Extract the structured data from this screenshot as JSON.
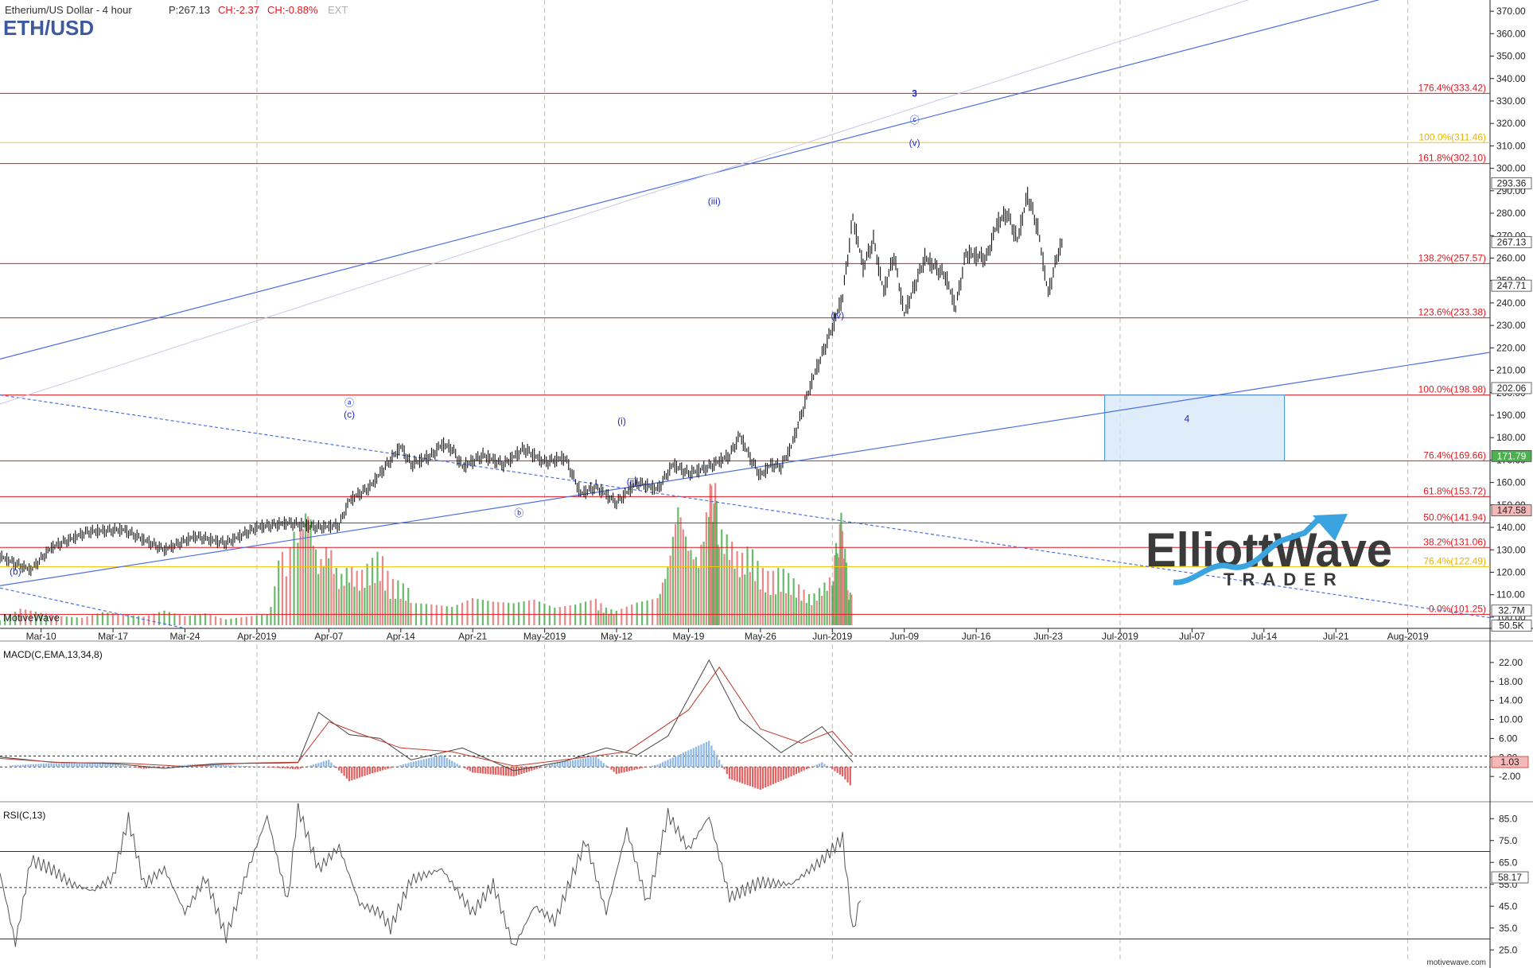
{
  "header": {
    "instrument": "Etherium/US Dollar - 4 hour",
    "price": "P:267.13",
    "change": "CH:-2.37",
    "change_pct": "CH:-0.88%",
    "ext": "EXT",
    "symbol": "ETH/USD"
  },
  "watermarks": {
    "motivewave": "MotiveWave",
    "site": "motivewave.com",
    "logo_line1": "ElliottWave",
    "logo_line2": "TRADER"
  },
  "colors": {
    "fib_red": "#e0191e",
    "fib_yellow": "#f5c518",
    "trend_blue": "#4a6fe0",
    "wave_label": "#1b2bd6",
    "box_fill": "#d4e6f7",
    "box_stroke": "#3b8fd6",
    "volume_up": "#4caf50",
    "volume_down": "#e57373"
  },
  "chart_data": [
    {
      "type": "line",
      "pane": "price",
      "y_axis": {
        "min": 95,
        "max": 375,
        "ticks": [
          100,
          110,
          120,
          130,
          140,
          150,
          160,
          170,
          180,
          190,
          200,
          210,
          220,
          230,
          240,
          250,
          260,
          270,
          280,
          290,
          300,
          310,
          320,
          330,
          340,
          350,
          360,
          370
        ]
      },
      "x_axis": {
        "ticks": [
          "Mar-10",
          "Mar-17",
          "Mar-24",
          "Apr-2019",
          "Apr-07",
          "Apr-14",
          "Apr-21",
          "May-2019",
          "May-12",
          "May-19",
          "May-26",
          "Jun-2019",
          "Jun-09",
          "Jun-16",
          "Jun-23",
          "Jul-2019",
          "Jul-07",
          "Jul-14",
          "Jul-21",
          "Aug-2019"
        ]
      },
      "price_path": [
        [
          0,
          127
        ],
        [
          6,
          121
        ],
        [
          10,
          131
        ],
        [
          17,
          138
        ],
        [
          24,
          139
        ],
        [
          32,
          130
        ],
        [
          38,
          136
        ],
        [
          44,
          133
        ],
        [
          50,
          140
        ],
        [
          56,
          142
        ],
        [
          62,
          140
        ],
        [
          66,
          141
        ],
        [
          68,
          152
        ],
        [
          72,
          158
        ],
        [
          76,
          170
        ],
        [
          78,
          176
        ],
        [
          80,
          168
        ],
        [
          84,
          172
        ],
        [
          86,
          177
        ],
        [
          88,
          175
        ],
        [
          90,
          167
        ],
        [
          94,
          172
        ],
        [
          98,
          168
        ],
        [
          102,
          175
        ],
        [
          106,
          169
        ],
        [
          110,
          171
        ],
        [
          113,
          155
        ],
        [
          116,
          158
        ],
        [
          120,
          151
        ],
        [
          124,
          160
        ],
        [
          128,
          157
        ],
        [
          131,
          168
        ],
        [
          134,
          164
        ],
        [
          138,
          167
        ],
        [
          142,
          172
        ],
        [
          144,
          181
        ],
        [
          146,
          171
        ],
        [
          148,
          163
        ],
        [
          150,
          168
        ],
        [
          152,
          167
        ],
        [
          154,
          176
        ],
        [
          158,
          205
        ],
        [
          162,
          229
        ],
        [
          164,
          243
        ],
        [
          166,
          278
        ],
        [
          168,
          256
        ],
        [
          170,
          268
        ],
        [
          172,
          245
        ],
        [
          174,
          261
        ],
        [
          176,
          235
        ],
        [
          180,
          260
        ],
        [
          184,
          252
        ],
        [
          186,
          238
        ],
        [
          188,
          262
        ],
        [
          192,
          260
        ],
        [
          194,
          275
        ],
        [
          196,
          280
        ],
        [
          198,
          268
        ],
        [
          200,
          288
        ],
        [
          202,
          273
        ],
        [
          204,
          244
        ],
        [
          206,
          263
        ],
        [
          207,
          267
        ]
      ],
      "x_range": [
        0,
        290
      ],
      "current_price": 267.13,
      "markers": [
        {
          "label": "293.36",
          "value": 293.36,
          "bg": "#ffffff",
          "fg": "#222222"
        },
        {
          "label": "267.13",
          "value": 267.13,
          "bg": "#ffffff",
          "fg": "#222222"
        },
        {
          "label": "247.71",
          "value": 247.71,
          "bg": "#ffffff",
          "fg": "#222222"
        },
        {
          "label": "202.06",
          "value": 202.06,
          "bg": "#ffffff",
          "fg": "#222222"
        },
        {
          "label": "171.79",
          "value": 171.79,
          "bg": "#4caf50",
          "fg": "#ffffff"
        },
        {
          "label": "147.58",
          "value": 147.58,
          "bg": "#f4b8b8",
          "fg": "#222222"
        },
        {
          "label": "32.7M",
          "value": 102.9,
          "bg": "#ffffff",
          "fg": "#222222"
        },
        {
          "label": "50.5K",
          "value": 96.2,
          "bg": "#ffffff",
          "fg": "#222222"
        }
      ],
      "fib_levels": [
        {
          "label": "176.4%(333.42)",
          "value": 333.42,
          "color": "red"
        },
        {
          "label": "100.0%(311.46)",
          "value": 311.46,
          "color": "yellow"
        },
        {
          "label": "161.8%(302.10)",
          "value": 302.1,
          "color": "red"
        },
        {
          "label": "138.2%(257.57)",
          "value": 257.57,
          "color": "red"
        },
        {
          "label": "123.6%(233.38)",
          "value": 233.38,
          "color": "red"
        },
        {
          "label": "100.0%(198.98)",
          "value": 198.98,
          "color": "red"
        },
        {
          "label": "76.4%(169.66)",
          "value": 169.66,
          "color": "red"
        },
        {
          "label": "61.8%(153.72)",
          "value": 153.72,
          "color": "red"
        },
        {
          "label": "50.0%(141.94)",
          "value": 141.94,
          "color": "red"
        },
        {
          "label": "38.2%(131.06)",
          "value": 131.06,
          "color": "red"
        },
        {
          "label": "76.4%(122.49)",
          "value": 122.49,
          "color": "yellow"
        },
        {
          "label": "0.0%(101.25)",
          "value": 101.25,
          "color": "red"
        }
      ],
      "wave_labels": [
        {
          "text": "(b)",
          "x": 3,
          "y": 119
        },
        {
          "text": "ⓐ",
          "x": 68,
          "y": 194
        },
        {
          "text": "(c)",
          "x": 68,
          "y": 189
        },
        {
          "text": "ⓑ",
          "x": 101,
          "y": 145
        },
        {
          "text": "(i)",
          "x": 121,
          "y": 186
        },
        {
          "text": "(ii)",
          "x": 123,
          "y": 159
        },
        {
          "text": "(iii)",
          "x": 139,
          "y": 284
        },
        {
          "text": "(iv)",
          "x": 163,
          "y": 233
        },
        {
          "text": "3",
          "x": 178,
          "y": 332
        },
        {
          "text": "ⓒ",
          "x": 178,
          "y": 320
        },
        {
          "text": "(v)",
          "x": 178,
          "y": 310
        },
        {
          "text": "4",
          "x": 231,
          "y": 187
        }
      ],
      "target_box": {
        "x_start": 215,
        "x_end": 250,
        "y_low": 169.66,
        "y_high": 198.98
      },
      "trend_lines": [
        {
          "from": [
            0,
            215
          ],
          "to": [
            290,
            388
          ],
          "style": "solid"
        },
        {
          "from": [
            0,
            114
          ],
          "to": [
            290,
            218
          ],
          "style": "solid"
        },
        {
          "from": [
            0,
            199
          ],
          "to": [
            298,
            97
          ],
          "style": "dashed"
        },
        {
          "from": [
            0,
            113
          ],
          "to": [
            60,
            83
          ],
          "style": "dashed"
        }
      ]
    },
    {
      "type": "bar",
      "pane": "macd",
      "title": "MACD(C,EMA,13,34,8)",
      "y_axis": {
        "min": -7,
        "max": 26,
        "ticks": [
          -2.0,
          2.0,
          6.0,
          10.0,
          14.0,
          18.0,
          22.0
        ]
      },
      "current_value": 1.03,
      "reference_lines": [
        0,
        2.3
      ],
      "histogram": [
        [
          2,
          0.3
        ],
        [
          10,
          0.8
        ],
        [
          20,
          1.0
        ],
        [
          28,
          -0.4
        ],
        [
          38,
          0.6
        ],
        [
          48,
          0.2
        ],
        [
          58,
          -0.5
        ],
        [
          64,
          1.5
        ],
        [
          68,
          -3.0
        ],
        [
          72,
          -1.5
        ],
        [
          80,
          1.0
        ],
        [
          86,
          2.5
        ],
        [
          92,
          -1.2
        ],
        [
          100,
          -2.0
        ],
        [
          108,
          0.8
        ],
        [
          116,
          2.2
        ],
        [
          120,
          -1.5
        ],
        [
          128,
          0.5
        ],
        [
          134,
          3.5
        ],
        [
          138,
          5.5
        ],
        [
          142,
          -2.5
        ],
        [
          148,
          -4.8
        ],
        [
          154,
          -2.0
        ],
        [
          160,
          1.0
        ],
        [
          164,
          -2.0
        ],
        [
          166,
          -4.5
        ]
      ],
      "macd_line": [
        [
          0,
          2.1
        ],
        [
          10,
          1.0
        ],
        [
          22,
          0.7
        ],
        [
          32,
          -0.3
        ],
        [
          42,
          0.7
        ],
        [
          54,
          0.8
        ],
        [
          58,
          0.9
        ],
        [
          62,
          11.5
        ],
        [
          68,
          6.8
        ],
        [
          74,
          6.0
        ],
        [
          80,
          1.5
        ],
        [
          90,
          4.0
        ],
        [
          100,
          -0.8
        ],
        [
          110,
          1.2
        ],
        [
          118,
          4.0
        ],
        [
          124,
          2.5
        ],
        [
          130,
          6.5
        ],
        [
          138,
          22.5
        ],
        [
          144,
          10.0
        ],
        [
          152,
          3.0
        ],
        [
          160,
          8.5
        ],
        [
          166,
          1.0
        ]
      ],
      "signal_line": [
        [
          0,
          1.8
        ],
        [
          12,
          0.9
        ],
        [
          24,
          0.8
        ],
        [
          36,
          0.1
        ],
        [
          48,
          0.8
        ],
        [
          58,
          1.0
        ],
        [
          64,
          9.5
        ],
        [
          70,
          7.0
        ],
        [
          78,
          4.0
        ],
        [
          88,
          3.2
        ],
        [
          100,
          0.2
        ],
        [
          112,
          1.8
        ],
        [
          122,
          3.2
        ],
        [
          134,
          12.0
        ],
        [
          140,
          21.0
        ],
        [
          148,
          8.0
        ],
        [
          156,
          5.0
        ],
        [
          162,
          7.5
        ],
        [
          166,
          2.5
        ]
      ]
    },
    {
      "type": "line",
      "pane": "rsi",
      "title": "RSI(C,13)",
      "y_axis": {
        "min": 20,
        "max": 92,
        "ticks": [
          25.0,
          35.0,
          45.0,
          55.0,
          65.0,
          75.0,
          85.0
        ]
      },
      "current_value": 58.17,
      "reference_lines": [
        70,
        53.5,
        30
      ],
      "values": [
        [
          0,
          60
        ],
        [
          3,
          28
        ],
        [
          6,
          66
        ],
        [
          10,
          62
        ],
        [
          14,
          55
        ],
        [
          18,
          52
        ],
        [
          22,
          58
        ],
        [
          25,
          85
        ],
        [
          28,
          55
        ],
        [
          32,
          62
        ],
        [
          36,
          42
        ],
        [
          40,
          58
        ],
        [
          44,
          31
        ],
        [
          48,
          60
        ],
        [
          52,
          86
        ],
        [
          56,
          47
        ],
        [
          58,
          90
        ],
        [
          62,
          62
        ],
        [
          66,
          72
        ],
        [
          70,
          46
        ],
        [
          74,
          42
        ],
        [
          76,
          35
        ],
        [
          80,
          57
        ],
        [
          86,
          62
        ],
        [
          92,
          42
        ],
        [
          96,
          55
        ],
        [
          100,
          26
        ],
        [
          104,
          45
        ],
        [
          108,
          38
        ],
        [
          114,
          75
        ],
        [
          118,
          42
        ],
        [
          122,
          80
        ],
        [
          126,
          46
        ],
        [
          130,
          87
        ],
        [
          134,
          71
        ],
        [
          138,
          86
        ],
        [
          142,
          49
        ],
        [
          148,
          56
        ],
        [
          154,
          55
        ],
        [
          160,
          66
        ],
        [
          164,
          76
        ],
        [
          166,
          33
        ],
        [
          168,
          55
        ]
      ]
    },
    {
      "type": "bar",
      "pane": "volume",
      "values": [
        [
          0,
          0.3
        ],
        [
          4,
          0.9
        ],
        [
          8,
          0.6
        ],
        [
          12,
          0.4
        ],
        [
          16,
          0.3
        ],
        [
          20,
          0.5
        ],
        [
          24,
          0.4
        ],
        [
          28,
          0.3
        ],
        [
          32,
          0.5
        ],
        [
          36,
          0.3
        ],
        [
          40,
          0.4
        ],
        [
          44,
          0.2
        ],
        [
          48,
          0.3
        ],
        [
          52,
          0.4
        ],
        [
          55,
          2.8
        ],
        [
          58,
          3.3
        ],
        [
          60,
          4.5
        ],
        [
          62,
          2.2
        ],
        [
          64,
          3.0
        ],
        [
          66,
          1.7
        ],
        [
          68,
          2.1
        ],
        [
          70,
          1.8
        ],
        [
          72,
          2.2
        ],
        [
          74,
          2.6
        ],
        [
          76,
          1.6
        ],
        [
          78,
          1.5
        ],
        [
          80,
          1.2
        ],
        [
          84,
          1.0
        ],
        [
          88,
          0.8
        ],
        [
          92,
          1.1
        ],
        [
          96,
          0.9
        ],
        [
          100,
          0.8
        ],
        [
          104,
          0.9
        ],
        [
          108,
          0.6
        ],
        [
          112,
          0.7
        ],
        [
          116,
          0.9
        ],
        [
          118,
          0.6
        ],
        [
          120,
          0.5
        ],
        [
          124,
          0.8
        ],
        [
          128,
          1.0
        ],
        [
          130,
          2.2
        ],
        [
          132,
          4.6
        ],
        [
          134,
          3.0
        ],
        [
          136,
          2.4
        ],
        [
          138,
          4.7
        ],
        [
          139,
          5.4
        ],
        [
          140,
          3.5
        ],
        [
          142,
          3.1
        ],
        [
          144,
          2.4
        ],
        [
          146,
          2.8
        ],
        [
          148,
          2.0
        ],
        [
          150,
          1.8
        ],
        [
          152,
          2.0
        ],
        [
          154,
          1.7
        ],
        [
          156,
          1.3
        ],
        [
          158,
          1.0
        ],
        [
          160,
          1.4
        ],
        [
          162,
          1.8
        ],
        [
          163,
          3.2
        ],
        [
          164,
          4.1
        ],
        [
          165,
          1.5
        ],
        [
          166,
          0.9
        ]
      ]
    }
  ]
}
